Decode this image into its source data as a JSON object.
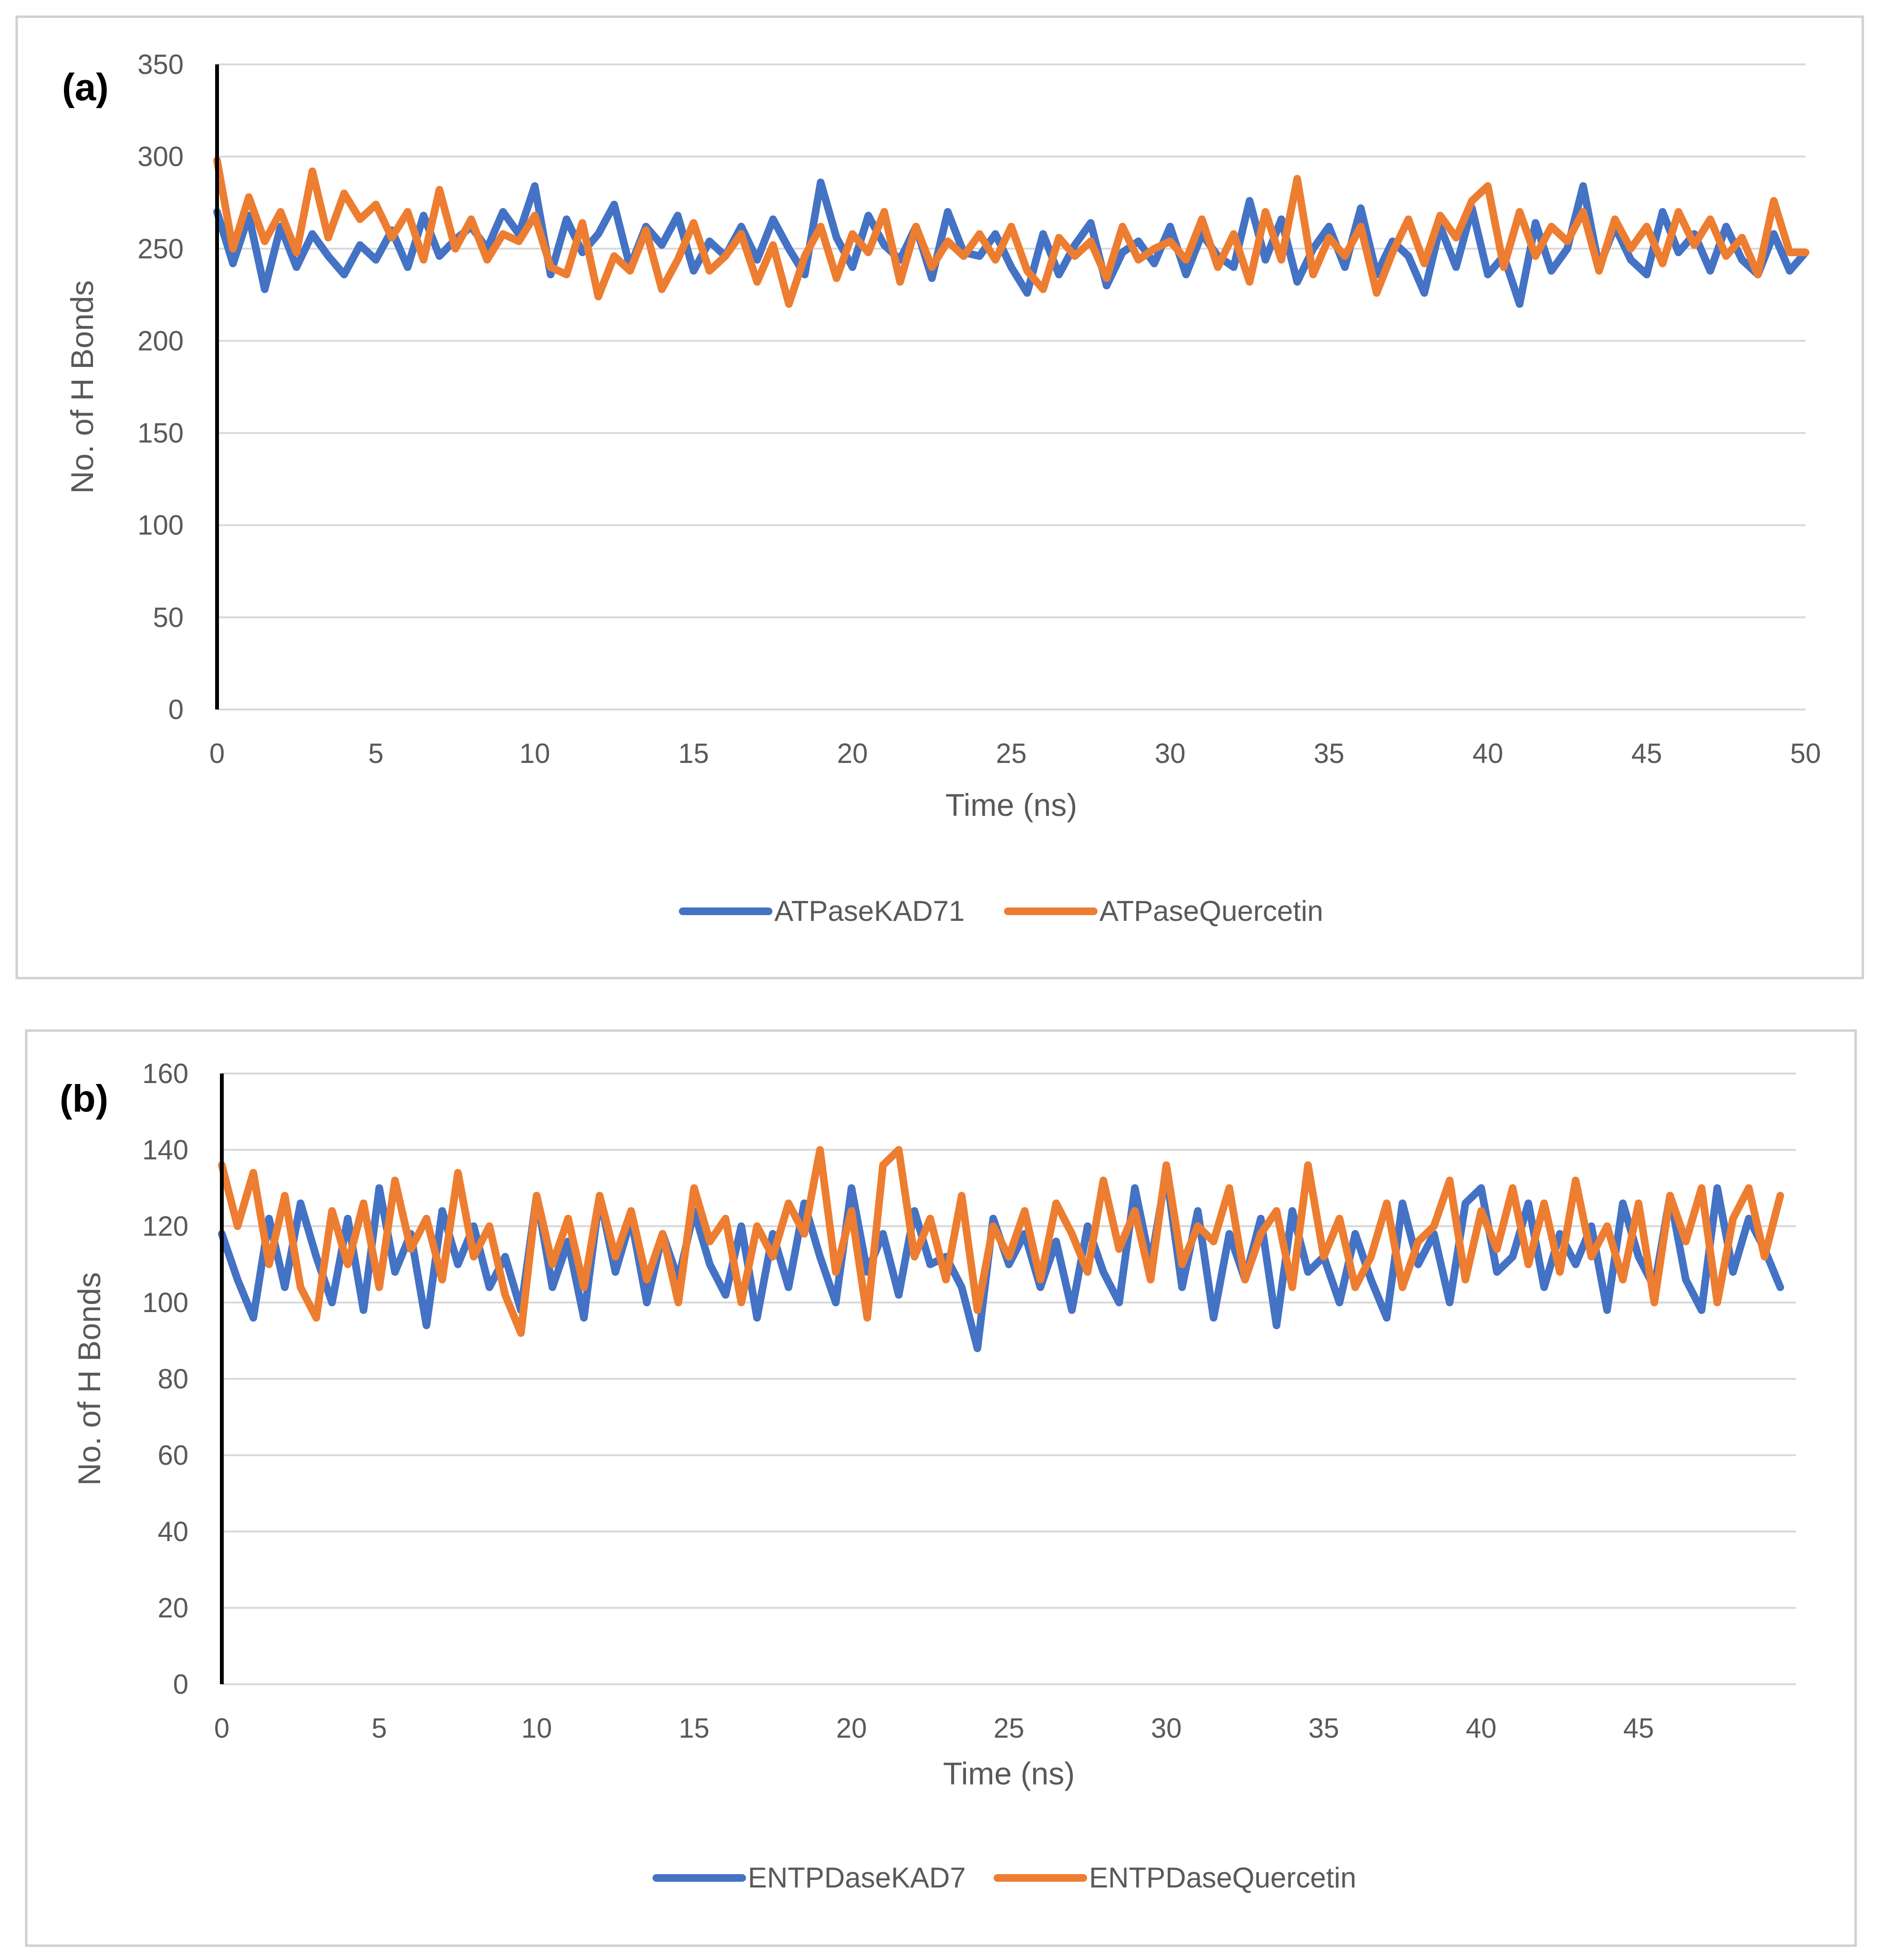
{
  "chart_data": [
    {
      "type": "line",
      "panel_label": "(a)",
      "title": "",
      "xlabel": "Time (ns)",
      "ylabel": "No. of H Bonds",
      "xlim": [
        0,
        50
      ],
      "ylim": [
        0,
        350
      ],
      "x_ticks": [
        "0",
        "5",
        "10",
        "15",
        "20",
        "25",
        "30",
        "35",
        "40",
        "45",
        "50"
      ],
      "y_ticks": [
        "0",
        "50",
        "100",
        "150",
        "200",
        "250",
        "300",
        "350"
      ],
      "grid": true,
      "legend_position": "bottom",
      "colors": {
        "series1": "#4472C4",
        "series2": "#ED7D31"
      },
      "series": [
        {
          "name": "ATPaseKAD71",
          "x": [
            0,
            0.5,
            1,
            1.5,
            2,
            2.5,
            3,
            3.5,
            4,
            4.5,
            5,
            5.5,
            6,
            6.5,
            7,
            7.5,
            8,
            8.5,
            9,
            9.5,
            10,
            10.5,
            11,
            11.5,
            12,
            12.5,
            13,
            13.5,
            14,
            14.5,
            15,
            15.5,
            16,
            16.5,
            17,
            17.5,
            18,
            18.5,
            19,
            19.5,
            20,
            20.5,
            21,
            21.5,
            22,
            22.5,
            23,
            23.5,
            24,
            24.5,
            25,
            25.5,
            26,
            26.5,
            27,
            27.5,
            28,
            28.5,
            29,
            29.5,
            30,
            30.5,
            31,
            31.5,
            32,
            32.5,
            33,
            33.5,
            34,
            34.5,
            35,
            35.5,
            36,
            36.5,
            37,
            37.5,
            38,
            38.5,
            39,
            39.5,
            40,
            40.5,
            41,
            41.5,
            42,
            42.5,
            43,
            43.5,
            44,
            44.5,
            45,
            45.5,
            46,
            46.5,
            47,
            47.5,
            48,
            48.5,
            49,
            49.5,
            50
          ],
          "values": [
            270,
            242,
            268,
            228,
            262,
            240,
            258,
            246,
            236,
            252,
            244,
            260,
            240,
            268,
            246,
            255,
            262,
            250,
            270,
            258,
            284,
            236,
            266,
            248,
            258,
            274,
            240,
            262,
            252,
            268,
            238,
            254,
            246,
            262,
            244,
            266,
            250,
            236,
            286,
            256,
            240,
            268,
            252,
            244,
            262,
            234,
            270,
            248,
            246,
            258,
            240,
            226,
            258,
            236,
            252,
            264,
            230,
            248,
            254,
            242,
            262,
            236,
            258,
            246,
            240,
            276,
            244,
            266,
            232,
            250,
            262,
            240,
            272,
            236,
            254,
            246,
            226,
            262,
            240,
            272,
            236,
            246,
            220,
            264,
            238,
            250,
            284,
            240,
            262,
            244,
            236,
            270,
            248,
            258,
            238,
            262,
            244,
            236,
            258,
            238,
            248
          ]
        },
        {
          "name": "ATPaseQuercetin",
          "x": [
            0,
            0.5,
            1,
            1.5,
            2,
            2.5,
            3,
            3.5,
            4,
            4.5,
            5,
            5.5,
            6,
            6.5,
            7,
            7.5,
            8,
            8.5,
            9,
            9.5,
            10,
            10.5,
            11,
            11.5,
            12,
            12.5,
            13,
            13.5,
            14,
            14.5,
            15,
            15.5,
            16,
            16.5,
            17,
            17.5,
            18,
            18.5,
            19,
            19.5,
            20,
            20.5,
            21,
            21.5,
            22,
            22.5,
            23,
            23.5,
            24,
            24.5,
            25,
            25.5,
            26,
            26.5,
            27,
            27.5,
            28,
            28.5,
            29,
            29.5,
            30,
            30.5,
            31,
            31.5,
            32,
            32.5,
            33,
            33.5,
            34,
            34.5,
            35,
            35.5,
            36,
            36.5,
            37,
            37.5,
            38,
            38.5,
            39,
            39.5,
            40,
            40.5,
            41,
            41.5,
            42,
            42.5,
            43,
            43.5,
            44,
            44.5,
            45,
            45.5,
            46,
            46.5,
            47,
            47.5,
            48,
            48.5,
            49,
            49.5,
            50
          ],
          "values": [
            298,
            250,
            278,
            254,
            270,
            248,
            292,
            256,
            280,
            266,
            274,
            256,
            270,
            244,
            282,
            250,
            266,
            244,
            258,
            254,
            268,
            240,
            236,
            264,
            224,
            246,
            238,
            260,
            228,
            244,
            264,
            238,
            246,
            258,
            232,
            252,
            220,
            246,
            262,
            234,
            258,
            248,
            270,
            232,
            262,
            240,
            254,
            246,
            258,
            244,
            262,
            238,
            228,
            256,
            246,
            254,
            234,
            262,
            244,
            250,
            254,
            244,
            266,
            240,
            258,
            232,
            270,
            244,
            288,
            236,
            256,
            246,
            262,
            226,
            248,
            266,
            242,
            268,
            256,
            276,
            284,
            240,
            270,
            246,
            262,
            254,
            270,
            238,
            266,
            250,
            262,
            242,
            270,
            252,
            266,
            246,
            256,
            236,
            276,
            248,
            248
          ]
        }
      ]
    },
    {
      "type": "line",
      "panel_label": "(b)",
      "title": "",
      "xlabel": "Time (ns)",
      "ylabel": "No. of H Bonds",
      "xlim": [
        0,
        50
      ],
      "ylim": [
        0,
        160
      ],
      "x_ticks": [
        "0",
        "5",
        "10",
        "15",
        "20",
        "25",
        "30",
        "35",
        "40",
        "45"
      ],
      "y_ticks": [
        "0",
        "20",
        "40",
        "60",
        "80",
        "100",
        "120",
        "140",
        "160"
      ],
      "grid": true,
      "legend_position": "bottom",
      "colors": {
        "series1": "#4472C4",
        "series2": "#ED7D31"
      },
      "series": [
        {
          "name": "ENTPDaseKAD7",
          "x": [
            0,
            0.5,
            1,
            1.5,
            2,
            2.5,
            3,
            3.5,
            4,
            4.5,
            5,
            5.5,
            6,
            6.5,
            7,
            7.5,
            8,
            8.5,
            9,
            9.5,
            10,
            10.5,
            11,
            11.5,
            12,
            12.5,
            13,
            13.5,
            14,
            14.5,
            15,
            15.5,
            16,
            16.5,
            17,
            17.5,
            18,
            18.5,
            19,
            19.5,
            20,
            20.5,
            21,
            21.5,
            22,
            22.5,
            23,
            23.5,
            24,
            24.5,
            25,
            25.5,
            26,
            26.5,
            27,
            27.5,
            28,
            28.5,
            29,
            29.5,
            30,
            30.5,
            31,
            31.5,
            32,
            32.5,
            33,
            33.5,
            34,
            34.5,
            35,
            35.5,
            36,
            36.5,
            37,
            37.5,
            38,
            38.5,
            39,
            39.5,
            40,
            40.5,
            41,
            41.5,
            42,
            42.5,
            43,
            43.5,
            44,
            44.5,
            45,
            45.5,
            46,
            46.5,
            47,
            47.5,
            48,
            48.5,
            49,
            49.5
          ],
          "values": [
            118,
            106,
            96,
            122,
            104,
            126,
            112,
            100,
            122,
            98,
            130,
            108,
            118,
            94,
            124,
            110,
            120,
            104,
            112,
            98,
            128,
            104,
            116,
            96,
            128,
            108,
            122,
            100,
            118,
            106,
            124,
            110,
            102,
            120,
            96,
            118,
            104,
            126,
            112,
            100,
            130,
            108,
            118,
            102,
            124,
            110,
            112,
            104,
            88,
            122,
            110,
            118,
            104,
            116,
            98,
            120,
            108,
            100,
            130,
            110,
            134,
            104,
            124,
            96,
            118,
            106,
            122,
            94,
            124,
            108,
            112,
            100,
            118,
            106,
            96,
            126,
            110,
            118,
            100,
            126,
            130,
            108,
            112,
            126,
            104,
            118,
            110,
            120,
            98,
            126,
            112,
            104,
            128,
            106,
            98,
            130,
            108,
            122,
            114,
            104
          ]
        },
        {
          "name": "ENTPDaseQuercetin",
          "x": [
            0,
            0.5,
            1,
            1.5,
            2,
            2.5,
            3,
            3.5,
            4,
            4.5,
            5,
            5.5,
            6,
            6.5,
            7,
            7.5,
            8,
            8.5,
            9,
            9.5,
            10,
            10.5,
            11,
            11.5,
            12,
            12.5,
            13,
            13.5,
            14,
            14.5,
            15,
            15.5,
            16,
            16.5,
            17,
            17.5,
            18,
            18.5,
            19,
            19.5,
            20,
            20.5,
            21,
            21.5,
            22,
            22.5,
            23,
            23.5,
            24,
            24.5,
            25,
            25.5,
            26,
            26.5,
            27,
            27.5,
            28,
            28.5,
            29,
            29.5,
            30,
            30.5,
            31,
            31.5,
            32,
            32.5,
            33,
            33.5,
            34,
            34.5,
            35,
            35.5,
            36,
            36.5,
            37,
            37.5,
            38,
            38.5,
            39,
            39.5,
            40,
            40.5,
            41,
            41.5,
            42,
            42.5,
            43,
            43.5,
            44,
            44.5,
            45,
            45.5,
            46,
            46.5,
            47,
            47.5,
            48,
            48.5,
            49,
            49.5
          ],
          "values": [
            136,
            120,
            134,
            110,
            128,
            104,
            96,
            124,
            110,
            126,
            104,
            132,
            114,
            122,
            106,
            134,
            112,
            120,
            102,
            92,
            128,
            110,
            122,
            104,
            128,
            112,
            124,
            106,
            118,
            100,
            130,
            116,
            122,
            100,
            120,
            112,
            126,
            118,
            140,
            108,
            124,
            96,
            136,
            140,
            112,
            122,
            106,
            128,
            98,
            120,
            112,
            124,
            106,
            126,
            118,
            108,
            132,
            114,
            124,
            106,
            136,
            110,
            120,
            116,
            130,
            106,
            118,
            124,
            104,
            136,
            112,
            122,
            104,
            112,
            126,
            104,
            116,
            120,
            132,
            106,
            124,
            114,
            130,
            110,
            126,
            108,
            132,
            112,
            120,
            106,
            126,
            100,
            128,
            116,
            130,
            100,
            122,
            130,
            112,
            128
          ]
        }
      ]
    }
  ]
}
